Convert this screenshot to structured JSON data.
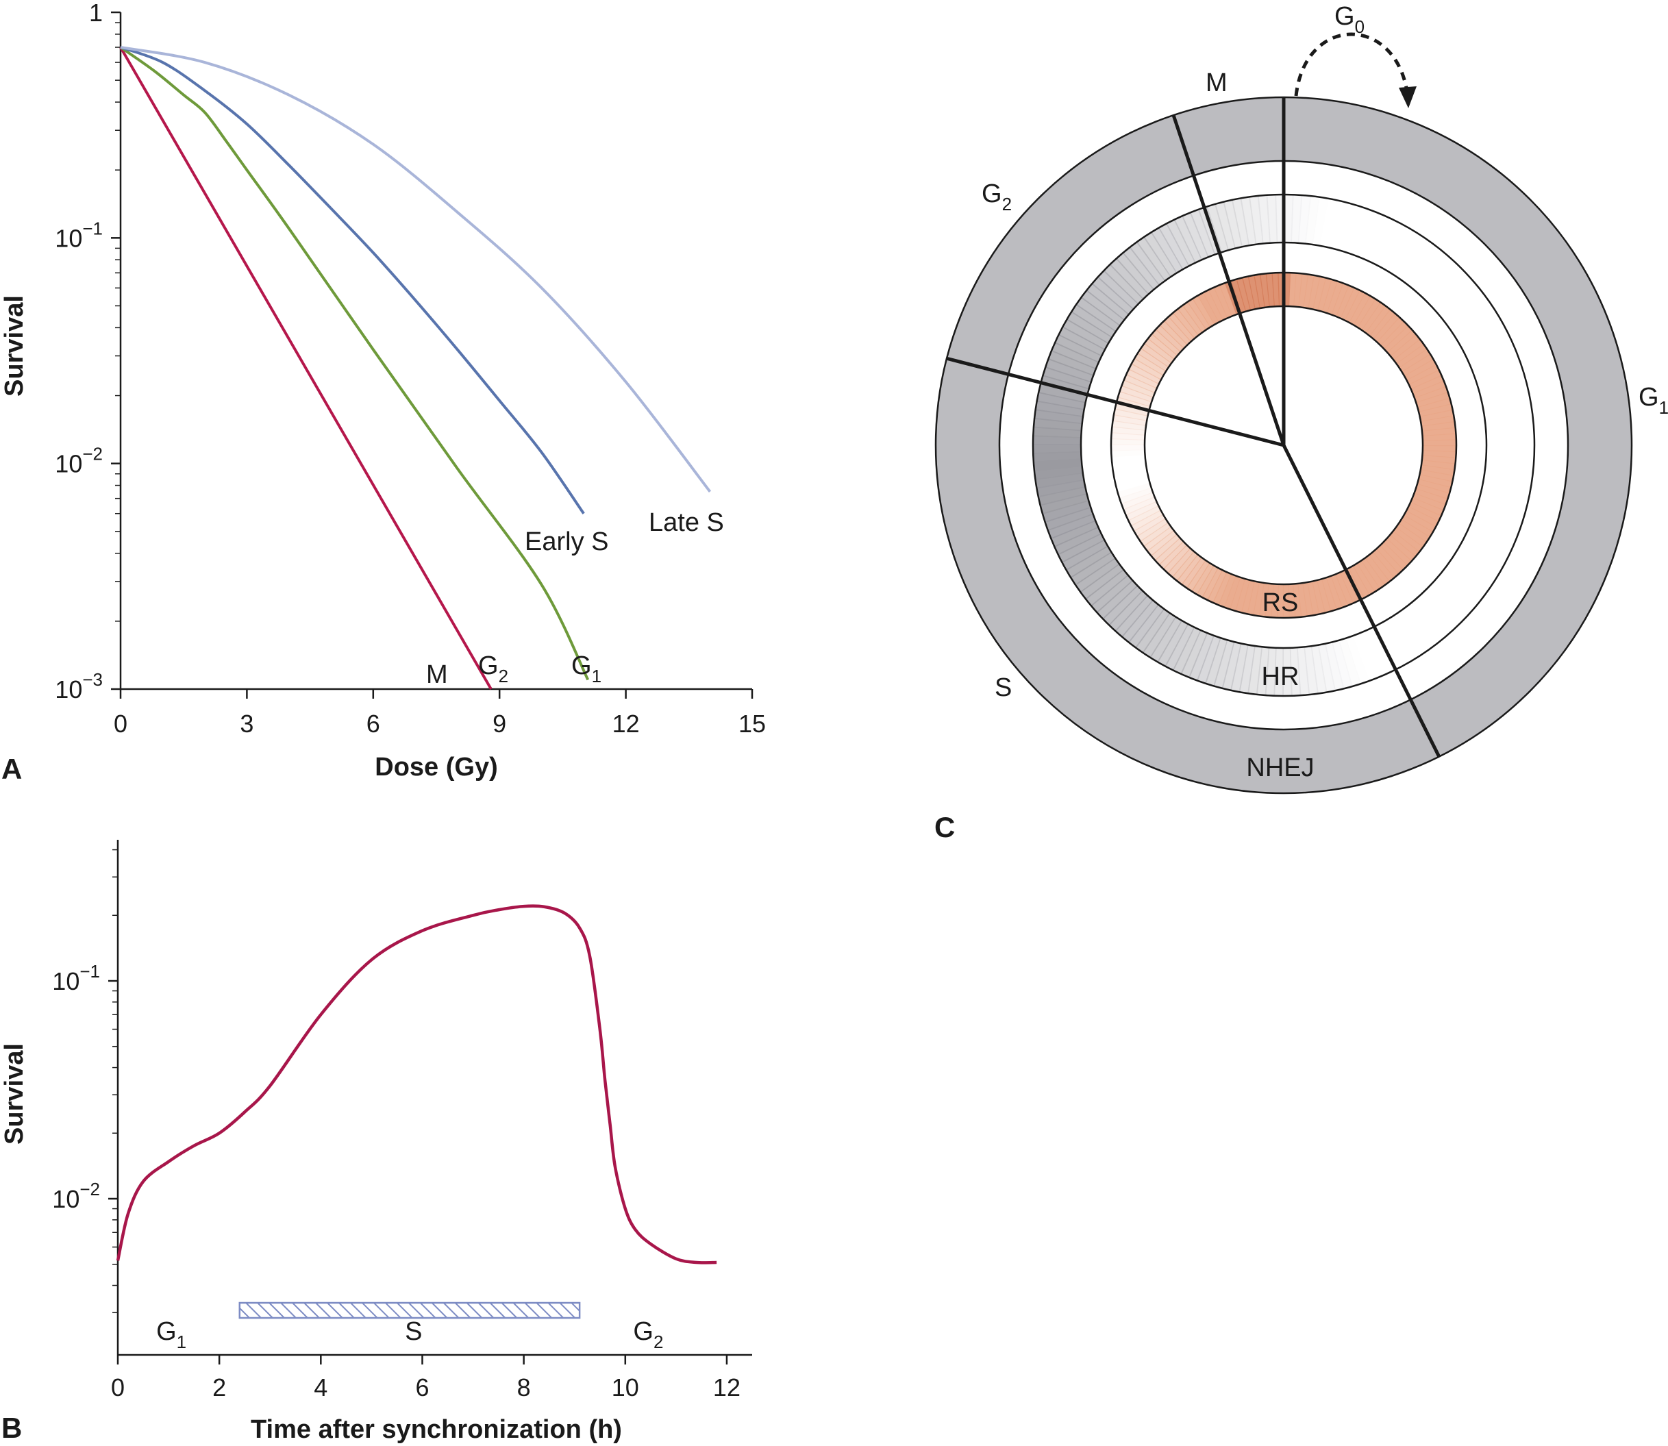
{
  "chart_data": [
    {
      "panel": "A",
      "type": "line",
      "xlabel": "Dose (Gy)",
      "ylabel": "Survival",
      "xlim": [
        0,
        15
      ],
      "ylim": [
        0.001,
        1
      ],
      "y_scale": "log",
      "x_ticks": [
        "0",
        "3",
        "6",
        "9",
        "12",
        "15"
      ],
      "x_tick_values": [
        0,
        3,
        6,
        9,
        12,
        15
      ],
      "y_ticks": [
        {
          "base": "1",
          "exp": "",
          "value": 1
        },
        {
          "base": "10",
          "exp": "−1",
          "value": 0.1
        },
        {
          "base": "10",
          "exp": "−2",
          "value": 0.01
        },
        {
          "base": "10",
          "exp": "−3",
          "value": 0.001
        }
      ],
      "series": [
        {
          "label": "M G2",
          "color": "#b5174b",
          "x": [
            0,
            8.8
          ],
          "y": [
            0.7,
            0.001
          ]
        },
        {
          "label": "G1",
          "color": "#6e9a3a",
          "x": [
            0,
            0.8,
            1.5,
            2,
            2.5,
            3,
            4,
            6,
            8,
            10,
            11.1
          ],
          "y": [
            0.7,
            0.55,
            0.43,
            0.36,
            0.27,
            0.2,
            0.11,
            0.032,
            0.0095,
            0.0029,
            0.0011
          ]
        },
        {
          "label": "Early S",
          "color": "#5874ad",
          "x": [
            0,
            1,
            2,
            3,
            4,
            5,
            6,
            7,
            8,
            9,
            10,
            11
          ],
          "y": [
            0.7,
            0.6,
            0.45,
            0.32,
            0.21,
            0.135,
            0.086,
            0.053,
            0.032,
            0.019,
            0.0112,
            0.006
          ]
        },
        {
          "label": "Late S",
          "color": "#a9b5d9",
          "x": [
            0,
            2,
            4,
            6,
            8,
            10,
            12,
            14
          ],
          "y": [
            0.7,
            0.6,
            0.43,
            0.26,
            0.13,
            0.06,
            0.023,
            0.0075
          ]
        }
      ]
    },
    {
      "panel": "B",
      "type": "line",
      "xlabel": "Time after synchronization (h)",
      "ylabel": "Survival",
      "xlim": [
        0,
        12.5
      ],
      "ylim": [
        0.003,
        0.4
      ],
      "y_scale": "log",
      "x_ticks": [
        "0",
        "2",
        "4",
        "6",
        "8",
        "10",
        "12"
      ],
      "x_tick_values": [
        0,
        2,
        4,
        6,
        8,
        10,
        12
      ],
      "y_ticks": [
        {
          "base": "10",
          "exp": "−1",
          "value": 0.1
        },
        {
          "base": "10",
          "exp": "−2",
          "value": 0.01
        }
      ],
      "series": [
        {
          "color": "#a8164a",
          "x": [
            0,
            0.2,
            0.5,
            1,
            1.5,
            2,
            2.5,
            3,
            4,
            5,
            6,
            7,
            7.5,
            8,
            8.4,
            8.8,
            9.1,
            9.3,
            9.5,
            9.6,
            9.7,
            9.8,
            10,
            10.2,
            10.5,
            11,
            11.4,
            11.8
          ],
          "y": [
            0.0052,
            0.0085,
            0.012,
            0.0148,
            0.0175,
            0.02,
            0.025,
            0.033,
            0.07,
            0.125,
            0.17,
            0.2,
            0.212,
            0.22,
            0.219,
            0.205,
            0.175,
            0.13,
            0.06,
            0.035,
            0.022,
            0.014,
            0.009,
            0.0072,
            0.0062,
            0.0053,
            0.0051,
            0.0051
          ]
        }
      ],
      "phase_bar": {
        "label": "S",
        "x_start": 2.4,
        "x_end": 9.1,
        "color": "#7d8cc4"
      },
      "phase_labels": [
        {
          "base": "G",
          "sub": "1",
          "x": 1
        },
        {
          "base": "S",
          "sub": "",
          "x": 5.9
        },
        {
          "base": "G",
          "sub": "2",
          "x": 10.4
        }
      ]
    },
    {
      "panel": "C",
      "type": "diagram",
      "phases": [
        {
          "base": "G",
          "sub": "0"
        },
        {
          "base": "M",
          "sub": ""
        },
        {
          "base": "G",
          "sub": "2"
        },
        {
          "base": "G",
          "sub": "1"
        },
        {
          "base": "S",
          "sub": ""
        }
      ],
      "rings": [
        {
          "label": "NHEJ",
          "color": "#bcbcc0"
        },
        {
          "label": "HR",
          "color": "#9a9aa0"
        },
        {
          "label": "RS",
          "color": "#e9a889"
        }
      ]
    }
  ],
  "panels": {
    "a": "A",
    "b": "B",
    "c": "C"
  },
  "panel_a_labels": {
    "m": "M",
    "g2_base": "G",
    "g2_sub": "2",
    "g1_base": "G",
    "g1_sub": "1",
    "early_s": "Early S",
    "late_s": "Late S"
  },
  "panel_c_labels": {
    "g0_base": "G",
    "g0_sub": "0",
    "m": "M",
    "g2_base": "G",
    "g2_sub": "2",
    "g1_base": "G",
    "g1_sub": "1",
    "s": "S",
    "nhej": "NHEJ",
    "hr": "HR",
    "rs": "RS"
  }
}
